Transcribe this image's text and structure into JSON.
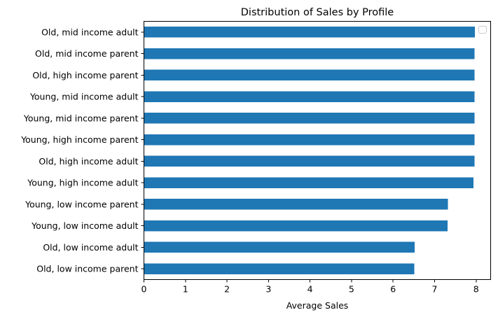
{
  "chart_data": {
    "type": "bar",
    "orientation": "horizontal",
    "title": "Distribution of Sales by Profile",
    "xlabel": "Average Sales",
    "ylabel": "",
    "xlim": [
      0,
      8.35
    ],
    "xticks": [
      0,
      1,
      2,
      3,
      4,
      5,
      6,
      7,
      8
    ],
    "grid": false,
    "legend": "top-right",
    "bar_color": "#1f77b4",
    "categories": [
      "Old, mid income adult",
      "Old, mid income parent",
      "Old, high income parent",
      "Young, mid income adult",
      "Young, mid income parent",
      "Young, high income parent",
      "Old, high income adult",
      "Young, high income adult",
      "Young, low income parent",
      "Young, low income adult",
      "Old, low income adult",
      "Old, low income parent"
    ],
    "values": [
      7.97,
      7.96,
      7.96,
      7.96,
      7.96,
      7.96,
      7.96,
      7.94,
      7.32,
      7.31,
      6.52,
      6.51
    ]
  }
}
